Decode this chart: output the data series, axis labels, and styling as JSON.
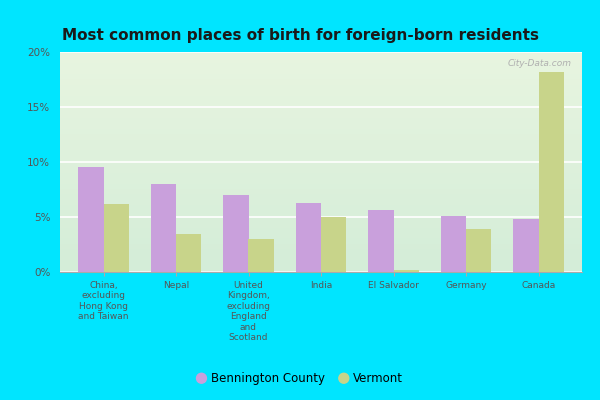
{
  "title": "Most common places of birth for foreign-born residents",
  "categories": [
    "China,\nexcluding\nHong Kong\nand Taiwan",
    "Nepal",
    "United\nKingdom,\nexcluding\nEngland\nand\nScotland",
    "India",
    "El Salvador",
    "Germany",
    "Canada"
  ],
  "bennington_values": [
    9.5,
    8.0,
    7.0,
    6.3,
    5.6,
    5.1,
    4.8
  ],
  "vermont_values": [
    6.2,
    3.5,
    3.0,
    5.0,
    0.2,
    3.9,
    18.2
  ],
  "bennington_color": "#c9a0dc",
  "vermont_color": "#c8d48a",
  "legend_labels": [
    "Bennington County",
    "Vermont"
  ],
  "ylim": [
    0,
    20
  ],
  "yticks": [
    0,
    5,
    10,
    15,
    20
  ],
  "ytick_labels": [
    "0%",
    "5%",
    "10%",
    "15%",
    "20%"
  ],
  "watermark": "City-Data.com",
  "outer_bg": "#00e5ff",
  "bar_width": 0.35,
  "title_fontsize": 11
}
